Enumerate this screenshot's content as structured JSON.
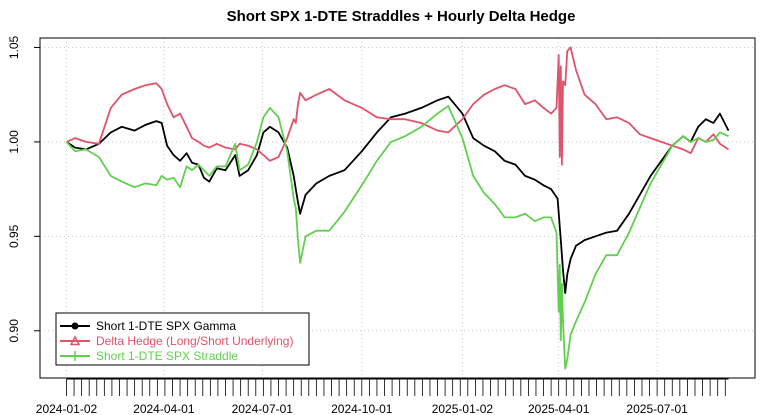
{
  "chart_data": {
    "type": "line",
    "title": "Short SPX 1-DTE Straddles + Hourly Delta Hedge",
    "xlabel": "",
    "ylabel": "",
    "x_start": "2024-01-02",
    "x_end": "2025-09-05",
    "ylim": [
      0.875,
      1.055
    ],
    "x_ticks": [
      "2024-01-02",
      "2024-04-01",
      "2024-07-01",
      "2024-10-01",
      "2025-01-02",
      "2025-04-01",
      "2025-07-01"
    ],
    "y_ticks": [
      {
        "value": 0.9,
        "label": "0.90"
      },
      {
        "value": 0.95,
        "label": "0.95"
      },
      {
        "value": 1.0,
        "label": "1.00"
      },
      {
        "value": 1.05,
        "label": "1.05"
      }
    ],
    "grid": true,
    "legend_position": "bottom-left",
    "series": [
      {
        "name": "Short 1-DTE SPX Gamma",
        "color": "#000000",
        "marker": "circle",
        "points": [
          [
            "2024-01-02",
            1.0
          ],
          [
            "2024-01-10",
            0.997
          ],
          [
            "2024-01-20",
            0.996
          ],
          [
            "2024-02-01",
            0.999
          ],
          [
            "2024-02-12",
            1.005
          ],
          [
            "2024-02-22",
            1.008
          ],
          [
            "2024-03-05",
            1.006
          ],
          [
            "2024-03-15",
            1.009
          ],
          [
            "2024-03-25",
            1.011
          ],
          [
            "2024-03-30",
            1.01
          ],
          [
            "2024-04-04",
            0.998
          ],
          [
            "2024-04-10",
            0.993
          ],
          [
            "2024-04-16",
            0.99
          ],
          [
            "2024-04-22",
            0.994
          ],
          [
            "2024-04-27",
            0.989
          ],
          [
            "2024-05-03",
            0.988
          ],
          [
            "2024-05-08",
            0.981
          ],
          [
            "2024-05-13",
            0.979
          ],
          [
            "2024-05-20",
            0.986
          ],
          [
            "2024-05-28",
            0.985
          ],
          [
            "2024-06-06",
            0.993
          ],
          [
            "2024-06-10",
            0.982
          ],
          [
            "2024-06-18",
            0.985
          ],
          [
            "2024-06-26",
            0.993
          ],
          [
            "2024-07-02",
            1.005
          ],
          [
            "2024-07-08",
            1.008
          ],
          [
            "2024-07-16",
            1.005
          ],
          [
            "2024-07-24",
            0.997
          ],
          [
            "2024-07-30",
            0.982
          ],
          [
            "2024-08-01",
            0.975
          ],
          [
            "2024-08-03",
            0.968
          ],
          [
            "2024-08-05",
            0.962
          ],
          [
            "2024-08-10",
            0.972
          ],
          [
            "2024-08-20",
            0.978
          ],
          [
            "2024-09-01",
            0.982
          ],
          [
            "2024-09-15",
            0.985
          ],
          [
            "2024-10-01",
            0.995
          ],
          [
            "2024-10-15",
            1.005
          ],
          [
            "2024-10-28",
            1.013
          ],
          [
            "2024-11-10",
            1.015
          ],
          [
            "2024-11-25",
            1.018
          ],
          [
            "2024-12-10",
            1.022
          ],
          [
            "2024-12-20",
            1.024
          ],
          [
            "2025-01-02",
            1.015
          ],
          [
            "2025-01-12",
            1.002
          ],
          [
            "2025-01-22",
            0.998
          ],
          [
            "2025-02-01",
            0.995
          ],
          [
            "2025-02-10",
            0.99
          ],
          [
            "2025-02-20",
            0.988
          ],
          [
            "2025-03-01",
            0.982
          ],
          [
            "2025-03-10",
            0.98
          ],
          [
            "2025-03-18",
            0.977
          ],
          [
            "2025-03-25",
            0.975
          ],
          [
            "2025-03-31",
            0.97
          ],
          [
            "2025-04-03",
            0.948
          ],
          [
            "2025-04-05",
            0.932
          ],
          [
            "2025-04-07",
            0.92
          ],
          [
            "2025-04-09",
            0.93
          ],
          [
            "2025-04-12",
            0.938
          ],
          [
            "2025-04-17",
            0.945
          ],
          [
            "2025-04-25",
            0.948
          ],
          [
            "2025-05-05",
            0.95
          ],
          [
            "2025-05-15",
            0.952
          ],
          [
            "2025-05-25",
            0.953
          ],
          [
            "2025-06-05",
            0.962
          ],
          [
            "2025-06-15",
            0.972
          ],
          [
            "2025-06-25",
            0.982
          ],
          [
            "2025-07-05",
            0.99
          ],
          [
            "2025-07-15",
            0.998
          ],
          [
            "2025-07-25",
            1.003
          ],
          [
            "2025-08-01",
            1.0
          ],
          [
            "2025-08-08",
            1.008
          ],
          [
            "2025-08-15",
            1.012
          ],
          [
            "2025-08-22",
            1.01
          ],
          [
            "2025-08-28",
            1.015
          ],
          [
            "2025-09-05",
            1.006
          ]
        ]
      },
      {
        "name": "Delta Hedge (Long/Short Underlying)",
        "color": "#df536b",
        "marker": "triangle",
        "points": [
          [
            "2024-01-02",
            1.0
          ],
          [
            "2024-01-10",
            1.002
          ],
          [
            "2024-01-20",
            1.0
          ],
          [
            "2024-02-01",
            0.999
          ],
          [
            "2024-02-12",
            1.018
          ],
          [
            "2024-02-22",
            1.025
          ],
          [
            "2024-03-05",
            1.028
          ],
          [
            "2024-03-15",
            1.03
          ],
          [
            "2024-03-25",
            1.031
          ],
          [
            "2024-03-30",
            1.028
          ],
          [
            "2024-04-04",
            1.02
          ],
          [
            "2024-04-10",
            1.013
          ],
          [
            "2024-04-16",
            1.015
          ],
          [
            "2024-04-22",
            1.008
          ],
          [
            "2024-04-27",
            1.002
          ],
          [
            "2024-05-03",
            1.0
          ],
          [
            "2024-05-08",
            0.998
          ],
          [
            "2024-05-13",
            0.997
          ],
          [
            "2024-05-20",
            0.999
          ],
          [
            "2024-05-28",
            0.997
          ],
          [
            "2024-06-06",
            0.996
          ],
          [
            "2024-06-10",
            0.999
          ],
          [
            "2024-06-18",
            0.998
          ],
          [
            "2024-06-26",
            0.996
          ],
          [
            "2024-07-02",
            0.993
          ],
          [
            "2024-07-08",
            0.99
          ],
          [
            "2024-07-16",
            0.992
          ],
          [
            "2024-07-24",
            1.002
          ],
          [
            "2024-07-30",
            1.012
          ],
          [
            "2024-08-01",
            1.01
          ],
          [
            "2024-08-03",
            1.02
          ],
          [
            "2024-08-05",
            1.026
          ],
          [
            "2024-08-10",
            1.022
          ],
          [
            "2024-08-20",
            1.025
          ],
          [
            "2024-09-01",
            1.028
          ],
          [
            "2024-09-15",
            1.022
          ],
          [
            "2024-10-01",
            1.018
          ],
          [
            "2024-10-15",
            1.013
          ],
          [
            "2024-10-28",
            1.012
          ],
          [
            "2024-11-10",
            1.012
          ],
          [
            "2024-11-25",
            1.01
          ],
          [
            "2024-12-10",
            1.006
          ],
          [
            "2024-12-20",
            1.005
          ],
          [
            "2025-01-02",
            1.012
          ],
          [
            "2025-01-12",
            1.02
          ],
          [
            "2025-01-22",
            1.025
          ],
          [
            "2025-02-01",
            1.028
          ],
          [
            "2025-02-10",
            1.03
          ],
          [
            "2025-02-20",
            1.028
          ],
          [
            "2025-03-01",
            1.02
          ],
          [
            "2025-03-10",
            1.022
          ],
          [
            "2025-03-18",
            1.018
          ],
          [
            "2025-03-25",
            1.015
          ],
          [
            "2025-03-30",
            1.018
          ],
          [
            "2025-04-01",
            1.046
          ],
          [
            "2025-04-02",
            0.992
          ],
          [
            "2025-04-03",
            1.04
          ],
          [
            "2025-04-04",
            0.988
          ],
          [
            "2025-04-05",
            1.032
          ],
          [
            "2025-04-07",
            1.03
          ],
          [
            "2025-04-09",
            1.048
          ],
          [
            "2025-04-12",
            1.05
          ],
          [
            "2025-04-17",
            1.038
          ],
          [
            "2025-04-25",
            1.025
          ],
          [
            "2025-05-05",
            1.02
          ],
          [
            "2025-05-15",
            1.012
          ],
          [
            "2025-05-25",
            1.013
          ],
          [
            "2025-06-05",
            1.01
          ],
          [
            "2025-06-15",
            1.004
          ],
          [
            "2025-06-25",
            1.002
          ],
          [
            "2025-07-05",
            1.0
          ],
          [
            "2025-07-15",
            0.998
          ],
          [
            "2025-07-25",
            0.996
          ],
          [
            "2025-08-01",
            0.994
          ],
          [
            "2025-08-08",
            1.002
          ],
          [
            "2025-08-15",
            1.0
          ],
          [
            "2025-08-22",
            1.004
          ],
          [
            "2025-08-28",
            0.999
          ],
          [
            "2025-09-05",
            0.996
          ]
        ]
      },
      {
        "name": "Short 1-DTE SPX Straddle",
        "color": "#61d04f",
        "marker": "plus",
        "points": [
          [
            "2024-01-02",
            1.0
          ],
          [
            "2024-01-10",
            0.995
          ],
          [
            "2024-01-20",
            0.996
          ],
          [
            "2024-02-01",
            0.992
          ],
          [
            "2024-02-12",
            0.982
          ],
          [
            "2024-02-22",
            0.979
          ],
          [
            "2024-03-05",
            0.976
          ],
          [
            "2024-03-15",
            0.978
          ],
          [
            "2024-03-25",
            0.977
          ],
          [
            "2024-03-30",
            0.982
          ],
          [
            "2024-04-04",
            0.98
          ],
          [
            "2024-04-10",
            0.981
          ],
          [
            "2024-04-16",
            0.976
          ],
          [
            "2024-04-22",
            0.987
          ],
          [
            "2024-04-27",
            0.985
          ],
          [
            "2024-05-03",
            0.988
          ],
          [
            "2024-05-08",
            0.985
          ],
          [
            "2024-05-13",
            0.982
          ],
          [
            "2024-05-20",
            0.987
          ],
          [
            "2024-05-28",
            0.987
          ],
          [
            "2024-06-06",
            0.999
          ],
          [
            "2024-06-10",
            0.985
          ],
          [
            "2024-06-18",
            0.988
          ],
          [
            "2024-06-26",
            1.0
          ],
          [
            "2024-07-02",
            1.013
          ],
          [
            "2024-07-08",
            1.018
          ],
          [
            "2024-07-16",
            1.013
          ],
          [
            "2024-07-24",
            0.995
          ],
          [
            "2024-07-30",
            0.97
          ],
          [
            "2024-08-01",
            0.965
          ],
          [
            "2024-08-03",
            0.948
          ],
          [
            "2024-08-05",
            0.936
          ],
          [
            "2024-08-10",
            0.95
          ],
          [
            "2024-08-20",
            0.953
          ],
          [
            "2024-09-01",
            0.953
          ],
          [
            "2024-09-15",
            0.963
          ],
          [
            "2024-10-01",
            0.977
          ],
          [
            "2024-10-15",
            0.99
          ],
          [
            "2024-10-28",
            1.0
          ],
          [
            "2024-11-10",
            1.003
          ],
          [
            "2024-11-25",
            1.008
          ],
          [
            "2024-12-10",
            1.015
          ],
          [
            "2024-12-20",
            1.019
          ],
          [
            "2025-01-02",
            1.002
          ],
          [
            "2025-01-12",
            0.982
          ],
          [
            "2025-01-22",
            0.973
          ],
          [
            "2025-02-01",
            0.967
          ],
          [
            "2025-02-10",
            0.96
          ],
          [
            "2025-02-20",
            0.96
          ],
          [
            "2025-03-01",
            0.962
          ],
          [
            "2025-03-10",
            0.958
          ],
          [
            "2025-03-18",
            0.96
          ],
          [
            "2025-03-25",
            0.96
          ],
          [
            "2025-03-30",
            0.952
          ],
          [
            "2025-04-01",
            0.91
          ],
          [
            "2025-04-02",
            0.935
          ],
          [
            "2025-04-03",
            0.895
          ],
          [
            "2025-04-04",
            0.925
          ],
          [
            "2025-04-05",
            0.905
          ],
          [
            "2025-04-07",
            0.88
          ],
          [
            "2025-04-09",
            0.885
          ],
          [
            "2025-04-12",
            0.898
          ],
          [
            "2025-04-17",
            0.905
          ],
          [
            "2025-04-25",
            0.915
          ],
          [
            "2025-05-05",
            0.93
          ],
          [
            "2025-05-15",
            0.94
          ],
          [
            "2025-05-25",
            0.94
          ],
          [
            "2025-06-05",
            0.952
          ],
          [
            "2025-06-15",
            0.965
          ],
          [
            "2025-06-25",
            0.978
          ],
          [
            "2025-07-05",
            0.988
          ],
          [
            "2025-07-15",
            0.998
          ],
          [
            "2025-07-25",
            1.003
          ],
          [
            "2025-08-01",
            1.0
          ],
          [
            "2025-08-08",
            1.002
          ],
          [
            "2025-08-15",
            1.0
          ],
          [
            "2025-08-22",
            1.001
          ],
          [
            "2025-08-28",
            1.005
          ],
          [
            "2025-09-05",
            1.003
          ]
        ]
      }
    ]
  }
}
